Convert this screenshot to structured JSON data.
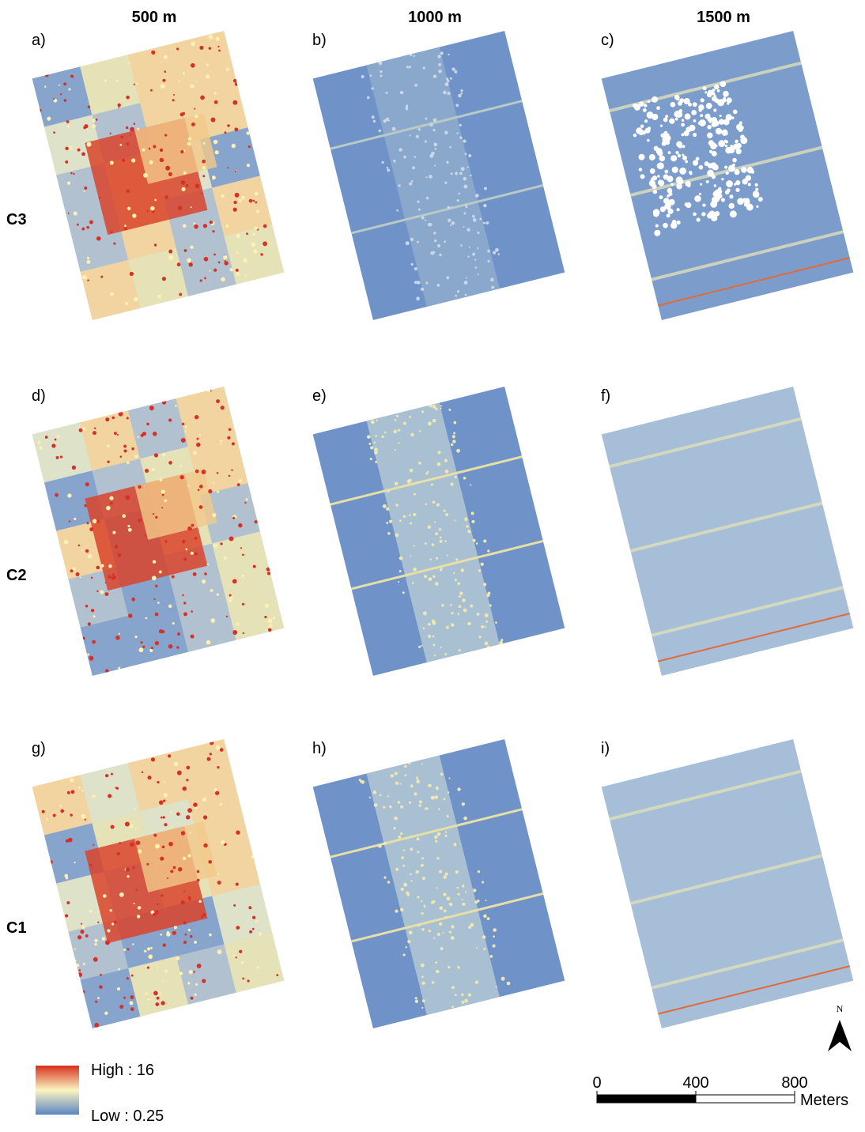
{
  "columns": [
    "500 m",
    "1000 m",
    "1500 m"
  ],
  "rows": [
    "C3",
    "C2",
    "C1"
  ],
  "panels": [
    "a)",
    "b)",
    "c)",
    "d)",
    "e)",
    "f)",
    "g)",
    "h)",
    "i)"
  ],
  "legend": {
    "high": "High : 16",
    "low": "Low : 0.25"
  },
  "scale_bar": {
    "ticks": [
      0,
      400,
      800
    ],
    "unit": "Meters"
  },
  "north": "N"
}
